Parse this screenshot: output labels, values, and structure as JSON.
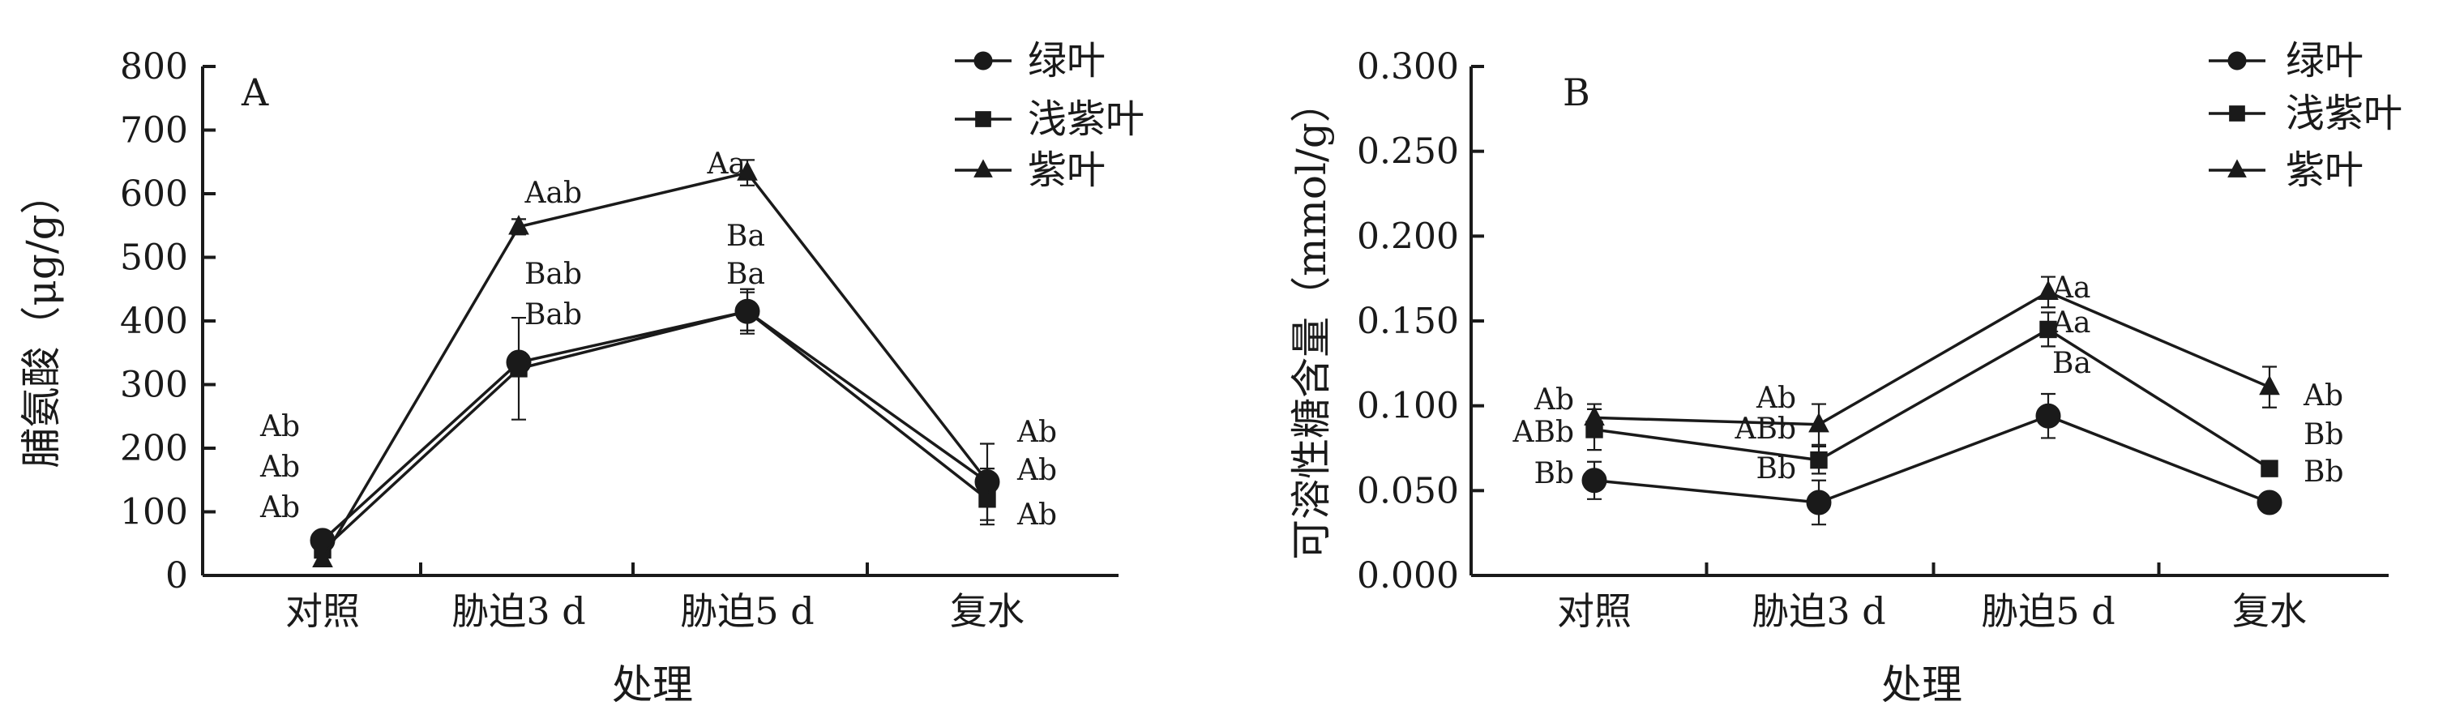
{
  "chart_data": [
    {
      "type": "line",
      "panel_label": "A",
      "ylabel": "脯氨酸（μg/g）",
      "xlabel": "处理",
      "categories": [
        "对照",
        "胁迫3 d",
        "胁迫5 d",
        "复水"
      ],
      "ylim": [
        0,
        800
      ],
      "yticks": [
        "0",
        "100",
        "200",
        "300",
        "400",
        "500",
        "600",
        "700",
        "800"
      ],
      "legend_position": "top-right",
      "series": [
        {
          "name": "绿叶",
          "marker": "circle",
          "values": [
            55,
            335,
            415,
            147
          ],
          "errors": [
            10,
            15,
            35,
            60
          ],
          "labels": [
            "Ab",
            "Bab",
            "Ba",
            "Ab"
          ]
        },
        {
          "name": "浅紫叶",
          "marker": "square",
          "values": [
            40,
            325,
            415,
            120
          ],
          "errors": [
            10,
            80,
            30,
            40
          ],
          "labels": [
            "Ab",
            "Bab",
            "Ba",
            "Ab"
          ]
        },
        {
          "name": "紫叶",
          "marker": "triangle",
          "values": [
            25,
            548,
            633,
            148
          ],
          "errors": [
            8,
            12,
            20,
            20
          ],
          "labels": [
            "Ab",
            "Aab",
            "Aa",
            "Ab"
          ]
        }
      ]
    },
    {
      "type": "line",
      "panel_label": "B",
      "ylabel": "可溶性糖含量（mmol/g）",
      "xlabel": "处理",
      "categories": [
        "对照",
        "胁迫3 d",
        "胁迫5 d",
        "复水"
      ],
      "ylim": [
        0,
        0.3
      ],
      "yticks": [
        "0.000",
        "0.050",
        "0.100",
        "0.150",
        "0.200",
        "0.250",
        "0.300"
      ],
      "legend_position": "top-right",
      "series": [
        {
          "name": "绿叶",
          "marker": "circle",
          "values": [
            0.056,
            0.043,
            0.094,
            0.043
          ],
          "errors": [
            0.011,
            0.013,
            0.013,
            0.004
          ],
          "labels": [
            "Bb",
            "Bb",
            "Ba",
            "Bb"
          ]
        },
        {
          "name": "浅紫叶",
          "marker": "square",
          "values": [
            0.086,
            0.068,
            0.145,
            0.063
          ],
          "errors": [
            0.012,
            0.008,
            0.01,
            0.004
          ],
          "labels": [
            "ABb",
            "ABb",
            "Aa",
            "Bb"
          ]
        },
        {
          "name": "紫叶",
          "marker": "triangle",
          "values": [
            0.093,
            0.089,
            0.167,
            0.111
          ],
          "errors": [
            0.008,
            0.012,
            0.009,
            0.012
          ],
          "labels": [
            "Ab",
            "Ab",
            "Aa",
            "Ab"
          ]
        }
      ]
    }
  ]
}
